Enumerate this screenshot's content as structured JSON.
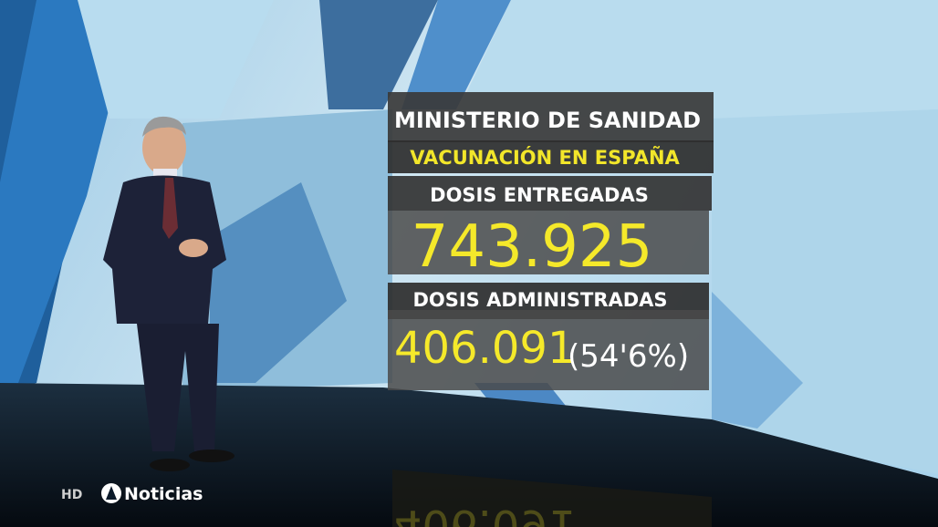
{
  "panel": {
    "source": "MINISTERIO DE SANIDAD",
    "subtitle": "VACUNACIÓN EN ESPAÑA",
    "delivered_label": "DOSIS ENTREGADAS",
    "delivered_value": "743.925",
    "administered_label": "DOSIS ADMINISTRADAS",
    "administered_value": "406.091",
    "administered_share": "(54'6%)"
  },
  "overlay": {
    "quality": "HD",
    "logo_text": "Noticias"
  }
}
